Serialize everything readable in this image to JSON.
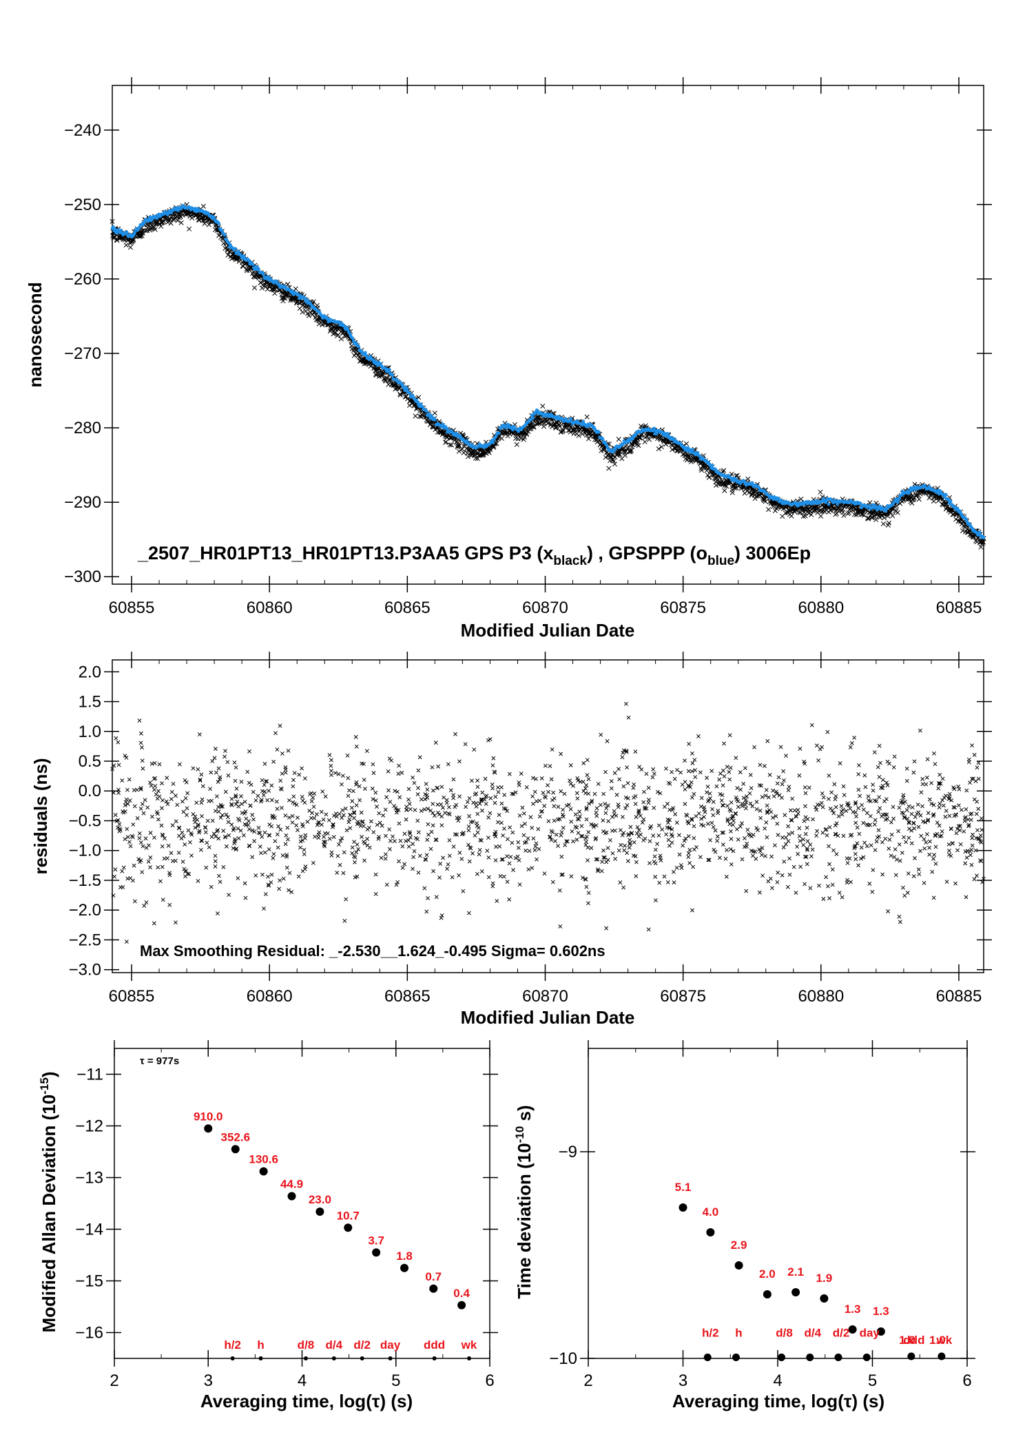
{
  "colors": {
    "black_series": "#000000",
    "blue_series": "#1f8ee6",
    "red_label": "#e8141b"
  },
  "chart_data": [
    {
      "type": "scatter",
      "xlabel": "Modified Julian Date",
      "ylabel": "nanosecond",
      "xlim": [
        60854.3,
        60885.9
      ],
      "ylim": [
        -301,
        -234
      ],
      "xticks": [
        60855,
        60860,
        60865,
        60870,
        60875,
        60880,
        60885
      ],
      "yticks": [
        -240,
        -250,
        -260,
        -270,
        -280,
        -290,
        -300
      ],
      "annotation": {
        "pre": "_2507_HR01PT13_HR01PT13.P3AA5    GPS P3 (x",
        "sub1": "black",
        "mid": ") ,  GPSPPP (o",
        "sub2": "blue",
        "post": ")  3006Ep"
      },
      "series": [
        {
          "marker": "x",
          "color": "#000000",
          "x": [
            60854.3,
            60855.0,
            60855.5,
            60856.2,
            60856.9,
            60857.6,
            60858.0,
            60858.6,
            60859.3,
            60859.9,
            60860.5,
            60861.3,
            60862.0,
            60862.7,
            60863.3,
            60864.0,
            60864.8,
            60865.6,
            60866.2,
            60866.8,
            60867.5,
            60868.0,
            60868.5,
            60869.1,
            60869.7,
            60870.4,
            60871.1,
            60871.7,
            60872.4,
            60873.0,
            60873.6,
            60874.3,
            60875.0,
            60875.6,
            60876.3,
            60877.0,
            60877.6,
            60878.3,
            60879.0,
            60879.7,
            60880.4,
            60881.1,
            60881.8,
            60882.4,
            60883.0,
            60883.7,
            60884.4,
            60885.0,
            60885.4,
            60885.9
          ],
          "y": [
            -253.5,
            -254.5,
            -252.5,
            -251.5,
            -250.6,
            -251.2,
            -252.0,
            -256.0,
            -258.0,
            -260.2,
            -261.4,
            -263.0,
            -265.5,
            -266.5,
            -270.0,
            -271.8,
            -274.5,
            -277.8,
            -280.0,
            -281.3,
            -283.0,
            -282.5,
            -279.8,
            -280.6,
            -278.2,
            -279.0,
            -279.6,
            -280.0,
            -283.5,
            -282.0,
            -280.5,
            -281.0,
            -282.8,
            -284.0,
            -286.5,
            -287.5,
            -288.0,
            -289.8,
            -290.6,
            -290.3,
            -290.1,
            -290.3,
            -291.0,
            -291.2,
            -289.0,
            -288.0,
            -289.2,
            -291.5,
            -293.5,
            -295.2
          ]
        },
        {
          "marker": "o",
          "color": "#1f8ee6",
          "x": [
            60854.3,
            60855.0,
            60855.5,
            60856.2,
            60856.9,
            60857.6,
            60858.0,
            60858.6,
            60859.3,
            60859.9,
            60860.5,
            60861.3,
            60862.0,
            60862.7,
            60863.3,
            60864.0,
            60864.8,
            60865.6,
            60866.2,
            60866.8,
            60867.5,
            60868.0,
            60868.5,
            60869.1,
            60869.7,
            60870.4,
            60871.1,
            60871.7,
            60872.4,
            60873.0,
            60873.6,
            60874.3,
            60875.0,
            60875.6,
            60876.3,
            60877.0,
            60877.6,
            60878.3,
            60879.0,
            60879.7,
            60880.4,
            60881.1,
            60881.8,
            60882.4,
            60883.0,
            60883.7,
            60884.4,
            60885.0,
            60885.4,
            60885.9
          ],
          "y": [
            -253.2,
            -254.2,
            -252.2,
            -251.2,
            -250.3,
            -250.9,
            -251.7,
            -255.7,
            -257.7,
            -259.9,
            -261.1,
            -262.7,
            -265.2,
            -266.2,
            -269.7,
            -271.5,
            -274.2,
            -277.5,
            -279.7,
            -281.0,
            -282.7,
            -282.2,
            -279.5,
            -280.3,
            -277.9,
            -278.7,
            -279.3,
            -279.7,
            -283.2,
            -281.7,
            -280.2,
            -280.7,
            -282.5,
            -283.7,
            -286.2,
            -287.2,
            -287.7,
            -289.5,
            -290.3,
            -290.0,
            -289.8,
            -290.0,
            -290.7,
            -290.9,
            -288.7,
            -287.7,
            -288.9,
            -291.2,
            -293.2,
            -294.9
          ]
        }
      ]
    },
    {
      "type": "scatter",
      "xlabel": "Modified Julian Date",
      "ylabel": "residuals (ns)",
      "xlim": [
        60854.3,
        60885.9
      ],
      "ylim": [
        -3.05,
        2.2
      ],
      "xticks": [
        60855,
        60860,
        60865,
        60870,
        60875,
        60880,
        60885
      ],
      "yticks": [
        2.0,
        1.5,
        1.0,
        0.5,
        0.0,
        -0.5,
        -1.0,
        -1.5,
        -2.0,
        -2.5,
        -3.0
      ],
      "ytick_labels": [
        "2.0",
        "1.5",
        "1.0",
        "0.5",
        "0.0",
        "−0.5",
        "−1.0",
        "−1.5",
        "−2.0",
        "−2.5",
        "−3.0"
      ],
      "annotation": "Max Smoothing Residual: _-2.530__1.624_-0.495  Sigma= 0.602ns",
      "statistics": {
        "min": -2.53,
        "max": 1.624,
        "mean": -0.495,
        "sigma": 0.602,
        "count": 3006
      },
      "series": [
        {
          "marker": "x",
          "color": "#000000"
        }
      ]
    },
    {
      "type": "scatter",
      "xlabel": "Averaging time, log(τ) (s)",
      "ylabel_main": "Modified Allan Deviation (10",
      "ylabel_sup": "-15",
      "ylabel_end": ")",
      "xlim": [
        2,
        6
      ],
      "ylim": [
        -16.5,
        -10.5
      ],
      "xticks": [
        2,
        3,
        4,
        5,
        6
      ],
      "yticks": [
        -11,
        -12,
        -13,
        -14,
        -15,
        -16
      ],
      "tau_note": "τ = 977s",
      "points": {
        "x": [
          3.0,
          3.29,
          3.59,
          3.89,
          4.19,
          4.49,
          4.79,
          5.09,
          5.4,
          5.7
        ],
        "y": [
          -12.05,
          -12.45,
          -12.88,
          -13.36,
          -13.66,
          -13.97,
          -14.45,
          -14.75,
          -15.15,
          -15.47
        ],
        "labels": [
          "910.0",
          "352.6",
          "130.6",
          "44.9",
          "23.0",
          "10.7",
          "3.7",
          "1.8",
          "0.7",
          "0.4"
        ]
      },
      "markers": [
        {
          "label": "h/2",
          "x": 3.26
        },
        {
          "label": "h",
          "x": 3.56
        },
        {
          "label": "d/8",
          "x": 4.04
        },
        {
          "label": "d/4",
          "x": 4.34
        },
        {
          "label": "d/2",
          "x": 4.64
        },
        {
          "label": "day",
          "x": 4.94
        },
        {
          "label": "ddd",
          "x": 5.41
        },
        {
          "label": "wk",
          "x": 5.78
        }
      ]
    },
    {
      "type": "scatter",
      "xlabel": "Averaging time, log(τ) (s)",
      "ylabel_main": "Time deviation (10",
      "ylabel_sup": "-10",
      "ylabel_end": " s)",
      "xlim": [
        2,
        6
      ],
      "ylim": [
        -10.0,
        -8.5
      ],
      "xticks": [
        2,
        3,
        4,
        5,
        6
      ],
      "yticks": [
        -9,
        -10
      ],
      "points": {
        "x": [
          3.0,
          3.29,
          3.59,
          3.89,
          4.19,
          4.49,
          4.79,
          5.09
        ],
        "y": [
          -9.27,
          -9.39,
          -9.55,
          -9.69,
          -9.68,
          -9.71,
          -9.86,
          -9.87
        ],
        "labels": [
          "5.1",
          "4.0",
          "2.9",
          "2.0",
          "2.1",
          "1.9",
          "1.3",
          "1.3"
        ]
      },
      "markers": [
        {
          "label": "h/2",
          "x": 3.26,
          "y": -9.995
        },
        {
          "label": "h",
          "x": 3.56,
          "y": -9.995
        },
        {
          "label": "d/8",
          "x": 4.04,
          "y": -9.995
        },
        {
          "label": "d/4",
          "x": 4.34,
          "y": -9.995
        },
        {
          "label": "d/2",
          "x": 4.64,
          "y": -9.995
        },
        {
          "label": "day",
          "x": 4.94,
          "y": -9.995
        },
        {
          "label": "ddd",
          "x": 5.41,
          "y": -9.99,
          "value": "1.0"
        },
        {
          "label": "wk",
          "x": 5.73,
          "y": -9.99,
          "value": "1.0"
        }
      ]
    }
  ]
}
